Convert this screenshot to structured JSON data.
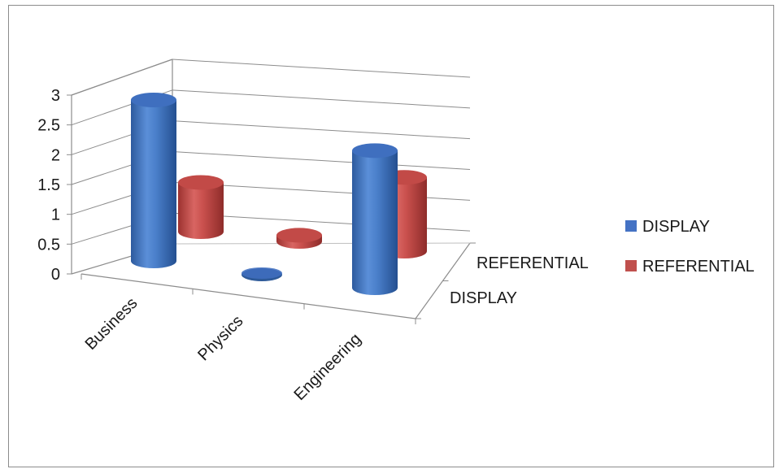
{
  "chart_data": {
    "type": "bar",
    "style": "3d-cylinder",
    "title": "",
    "categories": [
      "Business",
      "Physics",
      "Engineering"
    ],
    "series": [
      {
        "name": "DISPLAY",
        "values": [
          2.7,
          0,
          2.3
        ],
        "color": "#4472c4"
      },
      {
        "name": "REFERENTIAL",
        "values": [
          0.8,
          0.1,
          1.2
        ],
        "color": "#c0504d"
      }
    ],
    "depth_labels": [
      "DISPLAY",
      "REFERENTIAL"
    ],
    "yticks": [
      "0",
      "0.5",
      "1",
      "1.5",
      "2",
      "2.5",
      "3"
    ],
    "ylim": [
      0,
      3
    ],
    "grid": true,
    "legend": "right"
  }
}
